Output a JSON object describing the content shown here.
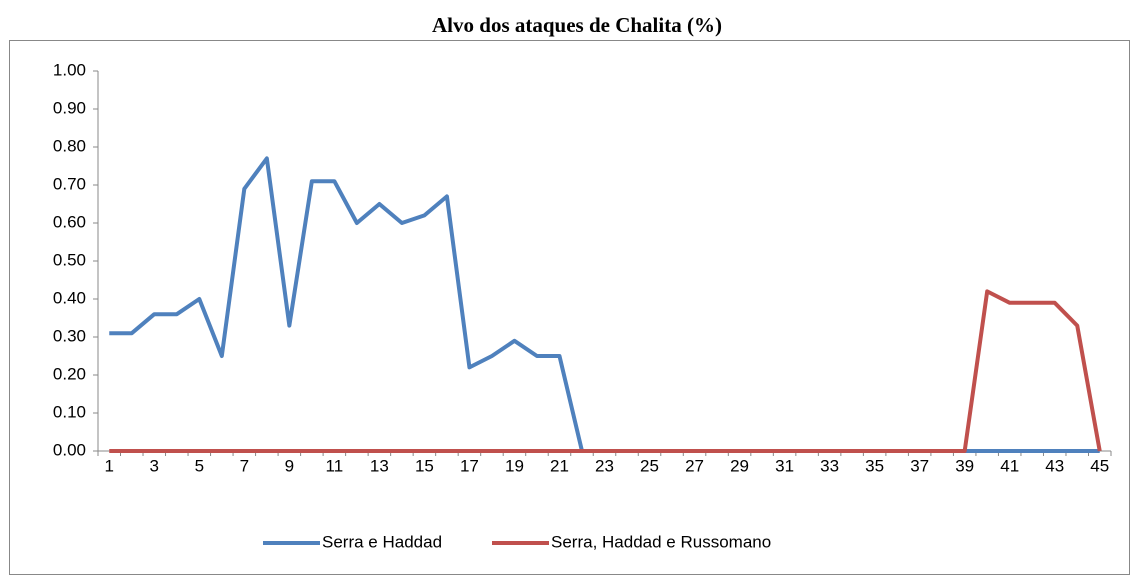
{
  "chart_data": {
    "type": "line",
    "title": "Alvo dos ataques de Chalita (%)",
    "categories": [
      "1",
      null,
      "3",
      null,
      "5",
      null,
      "7",
      null,
      "9",
      null,
      "11",
      null,
      "13",
      null,
      "15",
      null,
      "17",
      null,
      "19",
      null,
      "21",
      null,
      "23",
      null,
      "25",
      null,
      "27",
      null,
      "29",
      null,
      "31",
      null,
      "33",
      null,
      "35",
      null,
      "37",
      null,
      "39",
      null,
      "41",
      null,
      "43",
      null,
      "45"
    ],
    "series": [
      {
        "name": "Serra e Haddad",
        "color": "#4f81bd",
        "values": [
          0.31,
          0.31,
          0.36,
          0.36,
          0.4,
          0.25,
          0.69,
          0.77,
          0.33,
          0.71,
          0.71,
          0.6,
          0.65,
          0.6,
          0.62,
          0.67,
          0.22,
          0.25,
          0.29,
          0.25,
          0.25,
          0,
          0,
          0,
          0,
          0,
          0,
          0,
          0,
          0,
          0,
          0,
          0,
          0,
          0,
          0,
          0,
          0,
          0,
          0,
          0,
          0,
          0,
          0,
          0
        ]
      },
      {
        "name": "Serra, Haddad e Russomano",
        "color": "#c0504d",
        "values": [
          0,
          0,
          0,
          0,
          0,
          0,
          0,
          0,
          0,
          0,
          0,
          0,
          0,
          0,
          0,
          0,
          0,
          0,
          0,
          0,
          0,
          0,
          0,
          0,
          0,
          0,
          0,
          0,
          0,
          0,
          0,
          0,
          0,
          0,
          0,
          0,
          0,
          0,
          0,
          0.42,
          0.39,
          0.39,
          0.39,
          0.33,
          0
        ]
      }
    ],
    "ylim": [
      0,
      1
    ],
    "yticks": [
      {
        "value": 0,
        "label": "0.00"
      },
      {
        "value": 0.1,
        "label": "0.10"
      },
      {
        "value": 0.2,
        "label": "0.20"
      },
      {
        "value": 0.3,
        "label": "0.30"
      },
      {
        "value": 0.4,
        "label": "0.40"
      },
      {
        "value": 0.5,
        "label": "0.50"
      },
      {
        "value": 0.6,
        "label": "0.60"
      },
      {
        "value": 0.7,
        "label": "0.70"
      },
      {
        "value": 0.8,
        "label": "0.80"
      },
      {
        "value": 0.9,
        "label": "0.90"
      },
      {
        "value": 1,
        "label": "1.00"
      }
    ],
    "legend": "bottom"
  }
}
